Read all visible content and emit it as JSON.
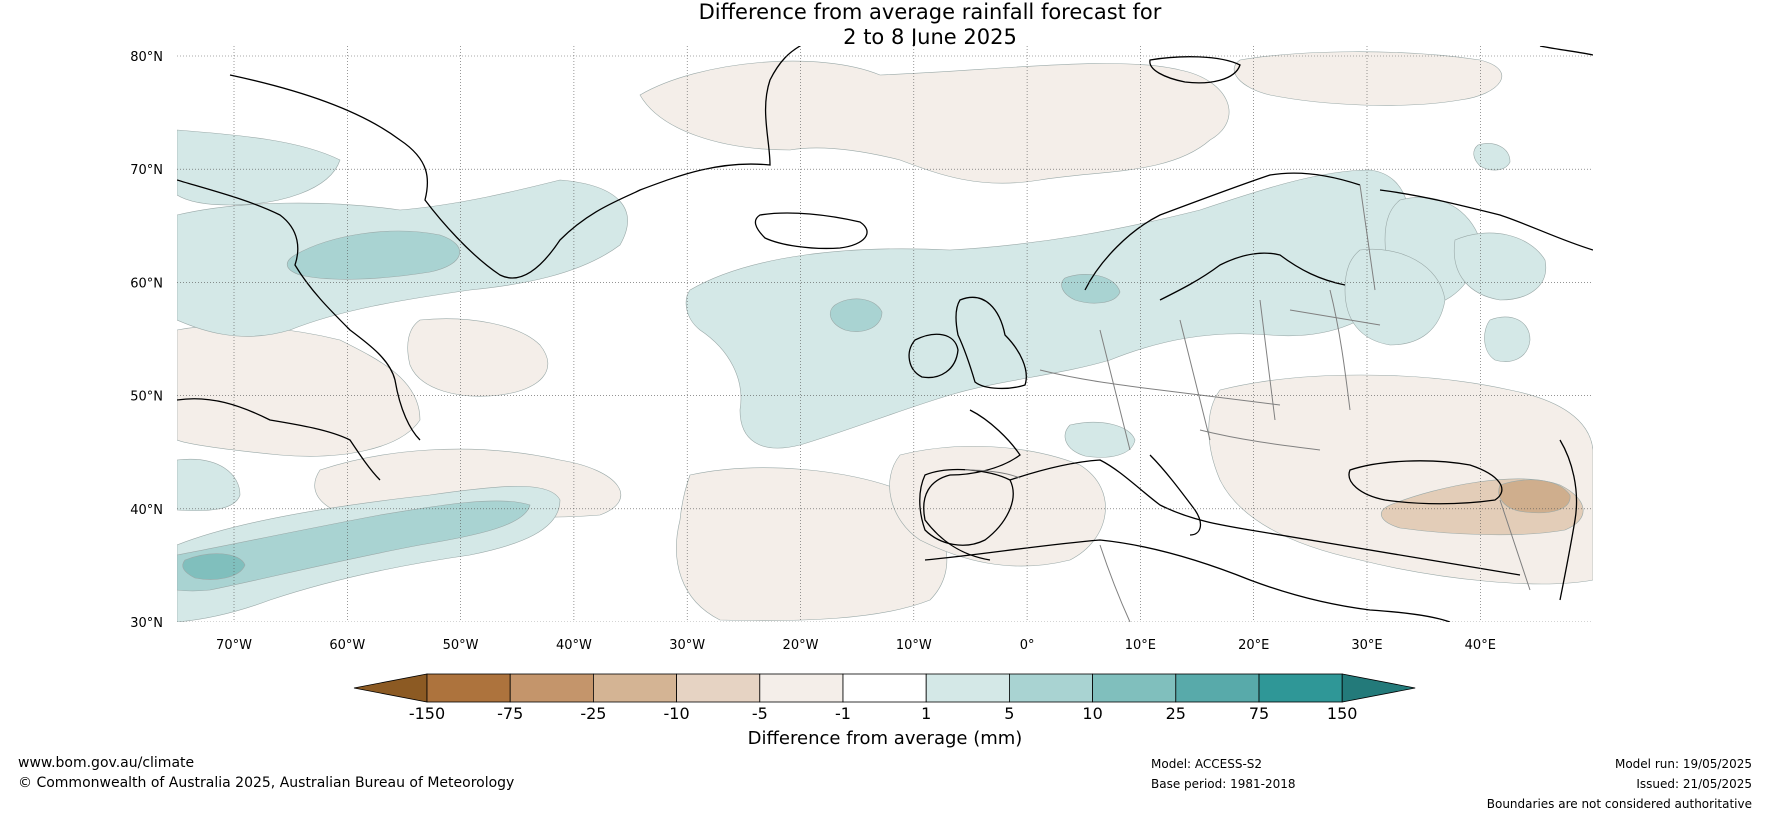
{
  "title": {
    "line1": "Difference from average rainfall forecast for",
    "line2": "2 to 8 June 2025"
  },
  "map": {
    "lat_ticks": [
      "80°N",
      "70°N",
      "60°N",
      "50°N",
      "40°N",
      "30°N"
    ],
    "lon_ticks": [
      "70°W",
      "60°W",
      "50°W",
      "40°W",
      "30°W",
      "20°W",
      "10°W",
      "0°",
      "10°E",
      "20°E",
      "30°E",
      "40°E"
    ],
    "colors": {
      "wet_light": "#d4e8e7",
      "wet_medium": "#a9d3d2",
      "wet_strong": "#80bfbd",
      "dry_light": "#f4eee9",
      "dry_medium": "#e3cdb8",
      "dry_strong": "#cfae8d",
      "coast": "#000000",
      "border": "#808080"
    }
  },
  "colorbar": {
    "ticks": [
      "-150",
      "-75",
      "-25",
      "-10",
      "-5",
      "-1",
      "1",
      "5",
      "10",
      "25",
      "75",
      "150"
    ],
    "colors": [
      "#8c5a23",
      "#ad733d",
      "#c4956b",
      "#d4b494",
      "#e6d3c3",
      "#f4eee9",
      "#ffffff",
      "#d4e8e7",
      "#a9d3d2",
      "#80bfbd",
      "#58aaaa",
      "#2f9797",
      "#237a7a"
    ],
    "label": "Difference from average (mm)"
  },
  "footer": {
    "website": "www.bom.gov.au/climate",
    "copyright": "© Commonwealth of Australia 2025, Australian Bureau of Meteorology",
    "model": "Model: ACCESS-S2",
    "base_period": "Base period: 1981-2018",
    "model_run": "Model run: 19/05/2025",
    "issued": "Issued: 21/05/2025",
    "disclaimer": "Boundaries are not considered authoritative"
  }
}
